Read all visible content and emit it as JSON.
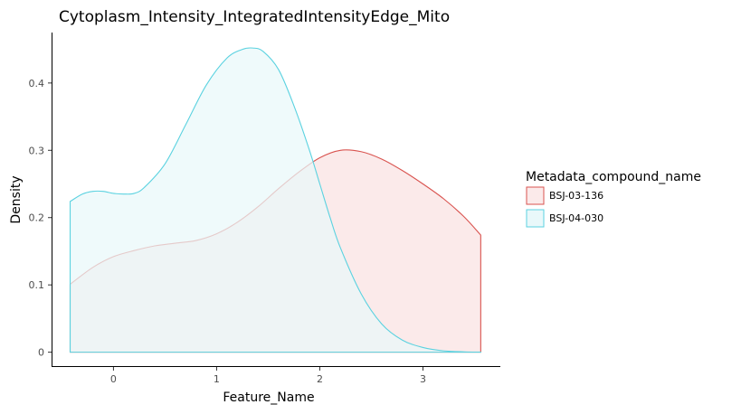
{
  "chart_data": {
    "type": "area",
    "title": "Cytoplasm_Intensity_IntegratedIntensityEdge_Mito",
    "xlabel": "Feature_Name",
    "ylabel": "Density",
    "xlim": [
      -0.6,
      3.75
    ],
    "ylim": [
      -0.022,
      0.475
    ],
    "x_ticks": [
      0,
      1,
      2,
      3
    ],
    "x_tick_labels": [
      "0",
      "1",
      "2",
      "3"
    ],
    "y_ticks": [
      0,
      0.1,
      0.2,
      0.3,
      0.4
    ],
    "y_tick_labels": [
      "0",
      "0.1",
      "0.2",
      "0.3",
      "0.4"
    ],
    "grid": false,
    "legend": {
      "title": "Metadata_compound_name",
      "position": "right"
    },
    "series": [
      {
        "name": "BSJ-03-136",
        "color": "#d9534f",
        "fill": "#fbeaea",
        "x": [
          -0.42,
          -0.2,
          0.0,
          0.2,
          0.4,
          0.6,
          0.8,
          1.0,
          1.2,
          1.4,
          1.6,
          1.8,
          2.0,
          2.2,
          2.4,
          2.6,
          2.8,
          3.0,
          3.2,
          3.4,
          3.56
        ],
        "y": [
          0.101,
          0.126,
          0.142,
          0.151,
          0.158,
          0.162,
          0.166,
          0.176,
          0.193,
          0.216,
          0.243,
          0.268,
          0.289,
          0.3,
          0.298,
          0.287,
          0.27,
          0.25,
          0.228,
          0.201,
          0.174
        ]
      },
      {
        "name": "BSJ-04-030",
        "color": "#5bd2e0",
        "fill": "#e9f8fa",
        "x": [
          -0.42,
          -0.3,
          -0.2,
          -0.1,
          0.0,
          0.1,
          0.2,
          0.3,
          0.5,
          0.7,
          0.9,
          1.1,
          1.25,
          1.35,
          1.45,
          1.6,
          1.75,
          1.9,
          2.0,
          2.1,
          2.2,
          2.4,
          2.6,
          2.8,
          3.0,
          3.2,
          3.4,
          3.56
        ],
        "y": [
          0.224,
          0.235,
          0.239,
          0.239,
          0.236,
          0.235,
          0.236,
          0.245,
          0.28,
          0.338,
          0.397,
          0.437,
          0.45,
          0.452,
          0.447,
          0.42,
          0.366,
          0.3,
          0.25,
          0.2,
          0.155,
          0.087,
          0.042,
          0.018,
          0.007,
          0.002,
          0.0005,
          0.0001
        ]
      }
    ]
  }
}
